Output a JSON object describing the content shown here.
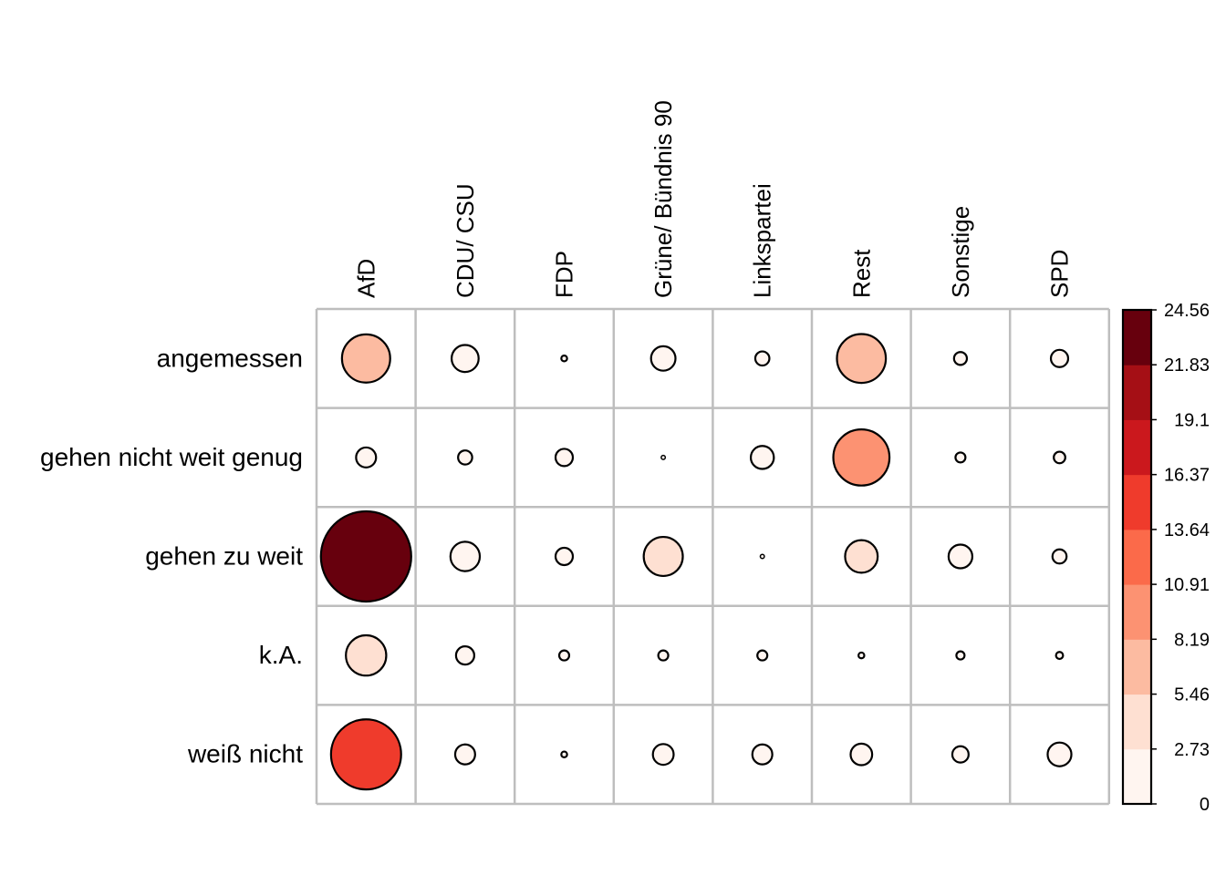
{
  "chart_data": {
    "type": "heatmap",
    "columns": [
      "AfD",
      "CDU/ CSU",
      "FDP",
      "Grüne/ Bündnis 90",
      "Linkspartei",
      "Rest",
      "Sonstige",
      "SPD"
    ],
    "rows": [
      "angemessen",
      "gehen nicht weit genug",
      "gehen zu weit",
      "k.A.",
      "weiß nicht"
    ],
    "values": [
      [
        7.0,
        2.2,
        0.1,
        1.8,
        0.6,
        7.2,
        0.5,
        0.9
      ],
      [
        1.2,
        0.6,
        0.9,
        0.05,
        1.6,
        9.5,
        0.3,
        0.4
      ],
      [
        24.56,
        2.6,
        0.9,
        4.6,
        0.05,
        3.2,
        1.7,
        0.6
      ],
      [
        4.9,
        1.0,
        0.3,
        0.3,
        0.3,
        0.1,
        0.2,
        0.15
      ],
      [
        14.8,
        1.2,
        0.1,
        1.3,
        1.2,
        1.4,
        0.8,
        1.7
      ]
    ],
    "legend": {
      "ticks": [
        "24.56",
        "21.83",
        "19.1",
        "16.37",
        "13.64",
        "10.91",
        "8.19",
        "5.46",
        "2.73",
        "0"
      ],
      "max": 24.56,
      "min": 0,
      "colors": [
        "#FFF5F0",
        "#FEE0D2",
        "#FCBBA1",
        "#FC9272",
        "#FB6A4A",
        "#EF3B2C",
        "#CB181D",
        "#A50F15",
        "#67000D"
      ],
      "position": "right"
    },
    "grid": true
  }
}
